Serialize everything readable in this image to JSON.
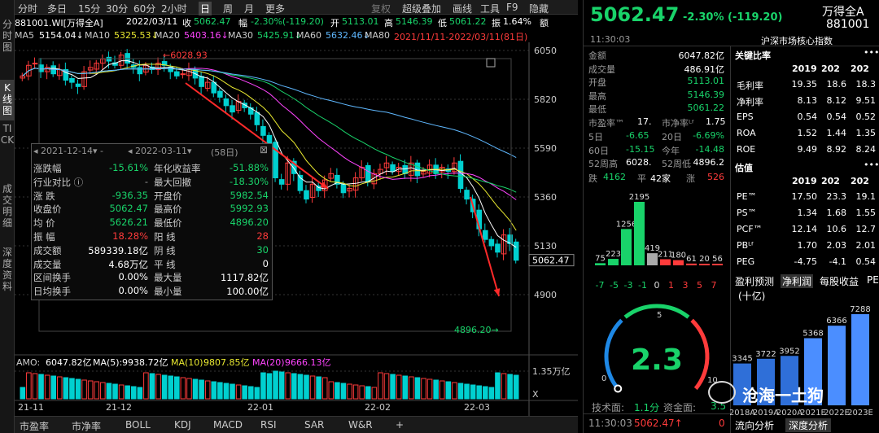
{
  "left_tabs": [
    {
      "label": "分时图"
    },
    {
      "label": "K线图"
    },
    {
      "label": "TICK"
    },
    {
      "label": "成交明细"
    },
    {
      "label": "深度资料"
    }
  ],
  "toolbar": {
    "items": [
      "分时",
      "多日",
      "15分",
      "30分",
      "60分",
      "2小时",
      "日",
      "周",
      "月",
      "更多"
    ],
    "active": "日",
    "right": [
      "复权",
      "超级叠加",
      "画线",
      "工具",
      "F9",
      "隐藏"
    ]
  },
  "info": {
    "code": "881001.WI[万得全A]",
    "date": "2022/03/11",
    "close_label": "收",
    "close": "5062.47",
    "chg_label": "幅",
    "chg": "-2.30%(-119.20)",
    "open_label": "开",
    "open": "5113.01",
    "high_label": "高",
    "high": "5146.39",
    "low_label": "低",
    "low": "5061.22",
    "amp_label": "振",
    "amp": "1.64%",
    "vol_label": "额"
  },
  "ma": [
    {
      "name": "MA5",
      "val": "5154.04↓",
      "color": "#ffffff"
    },
    {
      "name": "MA10",
      "val": "5325.53↓",
      "color": "#e8e830"
    },
    {
      "name": "MA20",
      "val": "5403.16↓",
      "color": "#ff44ff"
    },
    {
      "name": "MA30",
      "val": "5425.91↓",
      "color": "#19d36a"
    },
    {
      "name": "MA60",
      "val": "5632.46↓",
      "color": "#5fb8ff"
    },
    {
      "name": "MA80",
      "val": "2021/11/11-2022/03/11(81日)",
      "color": "#ff3b3b"
    }
  ],
  "price_axis": [
    "6050",
    "5820",
    "5590",
    "5360",
    "5130",
    "4900"
  ],
  "price_tag": "5062.47",
  "high_mark": "6028.93",
  "low_mark": "4896.20",
  "date_axis": [
    "21-11",
    "21-12",
    "22-01",
    "22-02",
    "22-03"
  ],
  "amo": {
    "label": "AMO:",
    "value": "6047.82亿",
    "ma5_label": "MA(5):",
    "ma5": "9938.72亿",
    "ma10_label": "MA(10):",
    "ma10": "9807.85亿",
    "ma20_label": "MA(20):",
    "ma20": "9666.13亿",
    "axis_top": "1.35万亿",
    "axis_mid": "X"
  },
  "stats": {
    "range_from": "2021-12-14",
    "range_to": "2022-03-11",
    "days": "(58日)",
    "rows_left": [
      [
        "涨跌幅",
        "-15.61%",
        "green"
      ],
      [
        "行业对比 ⓘ",
        "-",
        "gray"
      ],
      [
        "涨  跌",
        "-936.35",
        "green"
      ],
      [
        "收盘价",
        "5062.47",
        "green"
      ],
      [
        "均  价",
        "5626.21",
        "green"
      ],
      [
        "振  幅",
        "18.28%",
        "red"
      ],
      [
        "成交额",
        "589339.18亿",
        "white"
      ],
      [
        "成交量",
        "4.68万亿",
        "white"
      ],
      [
        "区间换手",
        "0.00%",
        "white"
      ],
      [
        "日均换手",
        "0.00%",
        "white"
      ]
    ],
    "rows_right": [
      [
        "年化收益率",
        "-51.88%",
        "green"
      ],
      [
        "最大回撤",
        "-18.30%",
        "green"
      ],
      [
        "开盘价",
        "5982.54",
        "green"
      ],
      [
        "最高价",
        "5992.93",
        "green"
      ],
      [
        "最低价",
        "4896.20",
        "green"
      ],
      [
        "阳  线",
        "28",
        "red"
      ],
      [
        "阴  线",
        "30",
        "green"
      ],
      [
        "平  线",
        "0",
        "white"
      ],
      [
        "最大量",
        "1117.82亿",
        "white"
      ],
      [
        "最小量",
        "100.00亿",
        "white"
      ]
    ]
  },
  "bottom_tabs": [
    "市盈率",
    "市净率",
    "BOLL",
    "KDJ",
    "MACD",
    "RSI",
    "SAR",
    "W&R",
    "+"
  ],
  "rp": {
    "price": "5062.47",
    "change": "-2.30% (-119.20)",
    "name": "万得全A",
    "code": "881001",
    "index_name": "沪深市场核心指数",
    "time": "11:30:03",
    "quote": [
      [
        "金额",
        "6047.82亿",
        "white"
      ],
      [
        "成交量",
        "486.91亿",
        "white"
      ],
      [
        "开盘",
        "5113.01",
        "green"
      ],
      [
        "最高",
        "5146.39",
        "green"
      ],
      [
        "最低",
        "5061.22",
        "green"
      ]
    ],
    "pe_line": {
      "pe_label": "市盈率™",
      "pe": "17.",
      "pb_label": "市净率ᴸᶠ",
      "pb": "1.75"
    },
    "periods": [
      [
        "5日",
        "-6.65",
        "20日",
        "-6.69%"
      ],
      [
        "60日",
        "-15.15",
        "今年",
        "-14.48"
      ],
      [
        "52周高",
        "6028.",
        "52周低",
        "4896.2"
      ]
    ],
    "updown": {
      "down_label": "跌",
      "down": "4162",
      "flat_label": "平",
      "flat": "42家",
      "up_label": "涨",
      "up": "526"
    },
    "dist_values": [
      "75",
      "223",
      "1256",
      "2195",
      "419",
      "211",
      "180",
      "61",
      "20",
      "56"
    ],
    "dist_axis": [
      "-7",
      "-5",
      "-3",
      "-1",
      "0",
      "1",
      "3",
      "5",
      "7"
    ],
    "gauge": {
      "value": "2.3",
      "ticks": [
        "0",
        "5",
        "10"
      ],
      "tech_label": "技术面:",
      "tech": "1.1分",
      "fund_label": "资金面:",
      "fund": "3.5"
    },
    "footer": {
      "time": "11:30:03",
      "price": "5062.47↑",
      "num": "0"
    },
    "ratios_title": "关键比率",
    "ratios_cols": [
      "2019",
      "202",
      "202"
    ],
    "ratios": [
      [
        "毛利率",
        "19.35",
        "18.6",
        "18.3"
      ],
      [
        "净利率",
        "8.13",
        "8.12",
        "9.51"
      ],
      [
        "EPS",
        "0.54",
        "0.54",
        "0.52"
      ],
      [
        "ROA",
        "1.52",
        "1.44",
        "1.35"
      ],
      [
        "ROE",
        "9.49",
        "8.92",
        "8.24"
      ]
    ],
    "val_title": "估值",
    "val_cols": [
      "2019",
      "202",
      "202"
    ],
    "valuation": [
      [
        "PE™",
        "17.50",
        "23.3",
        "19.1"
      ],
      [
        "PS™",
        "1.34",
        "1.68",
        "1.55"
      ],
      [
        "PCF™",
        "12.14",
        "10.6",
        "12.7"
      ],
      [
        "PBᴸᶠ",
        "1.70",
        "2.03",
        "2.01"
      ],
      [
        "PEG",
        "-4.75",
        "-4.1",
        "0.54"
      ]
    ],
    "profit_tabs": [
      "盈利预测",
      "净利润",
      "每股收益",
      "PE"
    ],
    "profit_unit": "(十亿)",
    "profit_values": [
      "3345",
      "3722",
      "3952",
      "5368",
      "6366",
      "7288"
    ],
    "profit_years": [
      "2018A",
      "2019A",
      "2020A",
      "2021E",
      "2022E",
      "2023E"
    ],
    "watermark": "沧海一土狗",
    "rp_tabs": [
      "流向分析",
      "深度分析"
    ]
  }
}
